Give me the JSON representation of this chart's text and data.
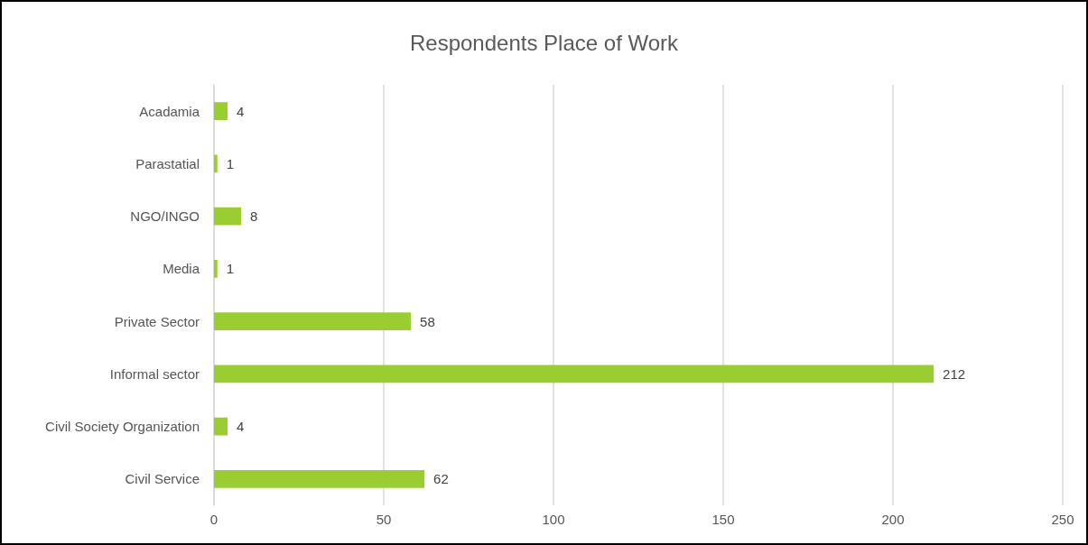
{
  "chart_data": {
    "type": "bar",
    "orientation": "horizontal",
    "title": "Respondents Place of Work",
    "categories": [
      "Acadamia",
      "Parastatial",
      "NGO/INGO",
      "Media",
      "Private Sector",
      "Informal sector",
      "Civil Society Organization",
      "Civil Service"
    ],
    "values": [
      4,
      1,
      8,
      1,
      58,
      212,
      4,
      62
    ],
    "color": "#9acd32",
    "data_labels": true,
    "xlim": [
      0,
      250
    ],
    "xticks": [
      0,
      50,
      100,
      150,
      200,
      250
    ],
    "grid": "x"
  }
}
